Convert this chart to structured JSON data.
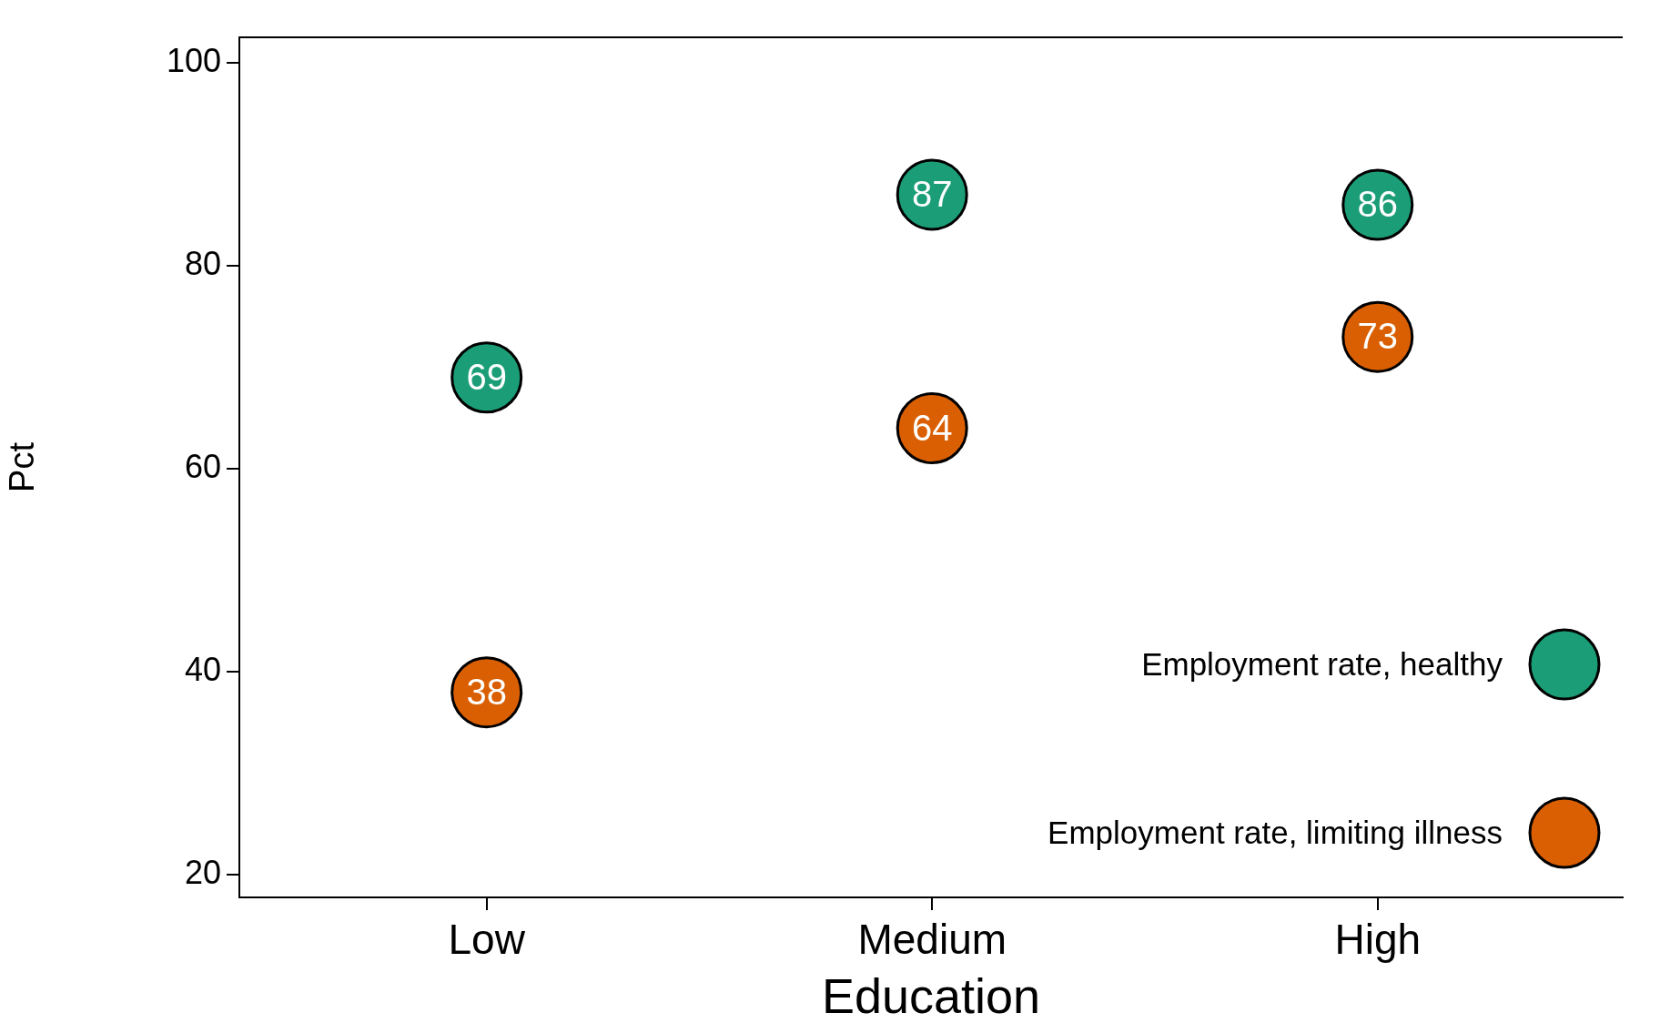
{
  "chart_data": {
    "type": "scatter",
    "xlabel": "Education",
    "ylabel": "Pct",
    "categories": [
      "Low",
      "Medium",
      "High"
    ],
    "series": [
      {
        "name": "Employment rate, healthy",
        "color": "#1b9e77",
        "values": [
          69,
          87,
          86
        ]
      },
      {
        "name": "Employment rate, limiting illness",
        "color": "#d95f02",
        "values": [
          38,
          64,
          73
        ]
      }
    ],
    "ylim": [
      17.8,
      102.5
    ],
    "yticks": [
      20,
      40,
      60,
      80,
      100
    ],
    "grid": false,
    "legend": "bottom right",
    "marker": "circle",
    "data_labels": true
  }
}
